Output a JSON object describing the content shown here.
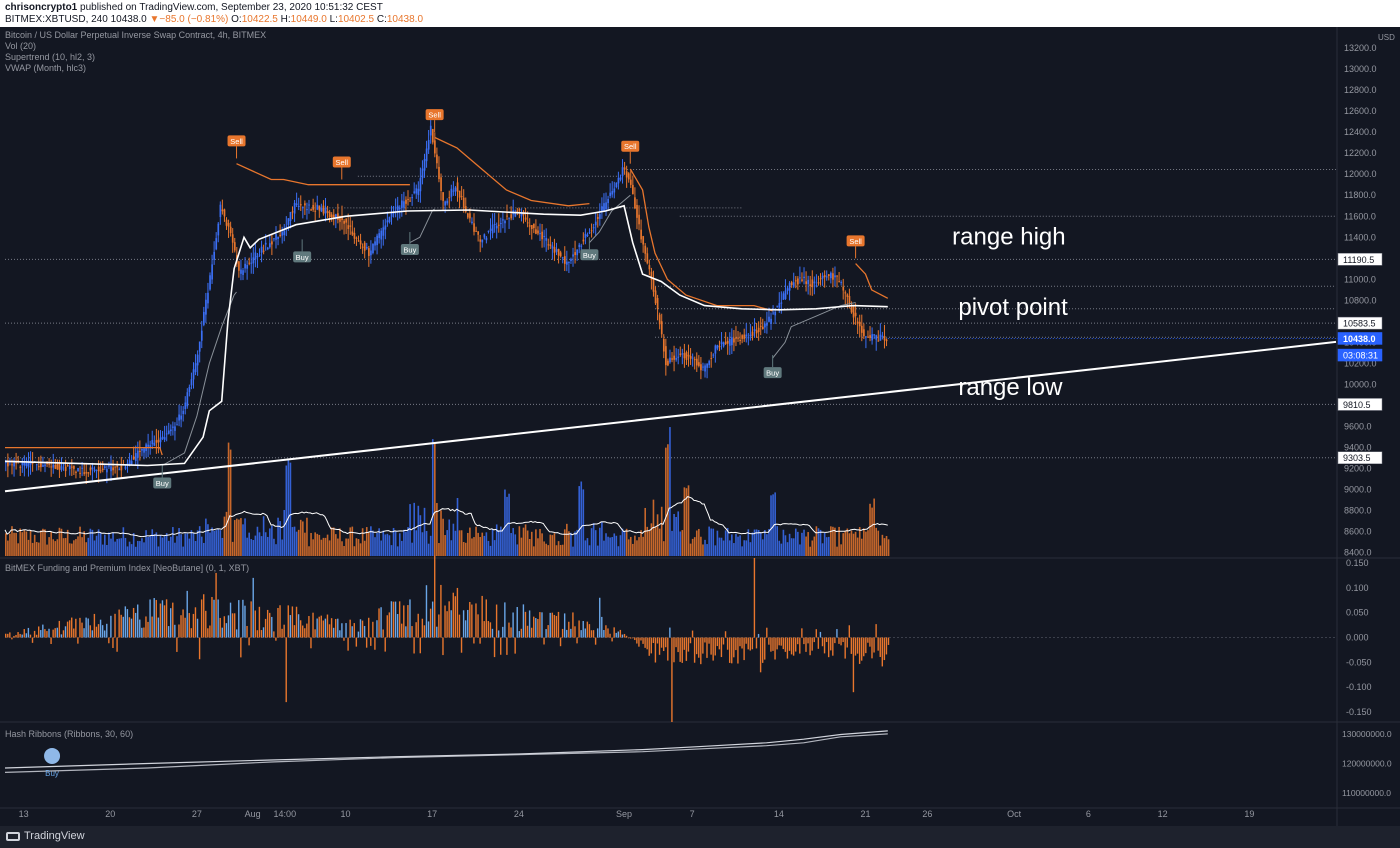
{
  "header": {
    "publisher": "chrisoncrypto1",
    "published_on": "published on TradingView.com, September 23, 2020 10:51:32 CEST",
    "symbol_line": "BITMEX:XBTUSD, 240",
    "last": "10438.0",
    "change": "▼−85.0 (−0.81%)",
    "ohlc": [
      {
        "k": "O:",
        "v": "10422.5"
      },
      {
        "k": "H:",
        "v": "10449.0"
      },
      {
        "k": "L:",
        "v": "10402.5"
      },
      {
        "k": "C:",
        "v": "10438.0"
      }
    ]
  },
  "legend": {
    "instrument": "Bitcoin / US Dollar Perpetual Inverse Swap Contract, 4h, BITMEX",
    "vol": "Vol (20)",
    "supertrend": "Supertrend (10, hl2, 3)",
    "vwap": "VWAP (Month, hlc3)",
    "funding": "BitMEX Funding and Premium Index [NeoButane] (0, 1, XBT)",
    "hash": "Hash Ribbons (Ribbons, 30, 60)"
  },
  "footer": {
    "brand": "TradingView"
  },
  "colors": {
    "background": "#131722",
    "candle_up": "#3b6ff5",
    "candle_down": "#e8762d",
    "supertrend_down": "#e8762d",
    "supertrend_up": "#8a9199",
    "vwap": "#ffffff",
    "trendline": "#ffffff",
    "dotted_level": "#787b86",
    "current_price_tag": "#2962ff"
  },
  "chart_data": [
    {
      "type": "candlestick",
      "title": "Bitcoin / US Dollar Perpetual Inverse Swap Contract, 4h, BITMEX",
      "currency": "USD",
      "ylim": [
        8350,
        13400
      ],
      "y_ticks": [
        8400,
        8600,
        8800,
        9000,
        9200,
        9400,
        9600,
        9800,
        10000,
        10200,
        10400,
        10600,
        10800,
        11000,
        11200,
        11400,
        11600,
        11800,
        12000,
        12200,
        12400,
        12600,
        12800,
        13000,
        13200,
        13400
      ],
      "x_ticks": [
        "13",
        "20",
        "27",
        "Aug",
        "14:00",
        "10",
        "17",
        "24",
        "Sep",
        "7",
        "14",
        "21",
        "26",
        "Oct",
        "6",
        "12",
        "19"
      ],
      "x_tick_days": [
        0,
        7,
        14,
        18.5,
        21.1,
        26,
        33,
        40,
        48.5,
        54,
        61,
        68,
        73,
        80,
        86,
        92,
        99
      ],
      "x_range_days": [
        -1.5,
        106
      ],
      "last_candle_day": 69.8,
      "price_path": [
        [
          -1.5,
          9250
        ],
        [
          2,
          9240
        ],
        [
          5,
          9180
        ],
        [
          8,
          9210
        ],
        [
          10,
          9400
        ],
        [
          12,
          9560
        ],
        [
          13,
          9750
        ],
        [
          14,
          10200
        ],
        [
          15,
          10900
        ],
        [
          16,
          11700
        ],
        [
          17,
          11350
        ],
        [
          17.5,
          11050
        ],
        [
          19,
          11250
        ],
        [
          21,
          11450
        ],
        [
          22,
          11700
        ],
        [
          24,
          11680
        ],
        [
          26,
          11550
        ],
        [
          27,
          11380
        ],
        [
          28,
          11250
        ],
        [
          30,
          11650
        ],
        [
          32,
          11850
        ],
        [
          33,
          12450
        ],
        [
          34,
          11700
        ],
        [
          35,
          11900
        ],
        [
          36,
          11600
        ],
        [
          37,
          11350
        ],
        [
          38,
          11500
        ],
        [
          40,
          11650
        ],
        [
          42,
          11400
        ],
        [
          44,
          11150
        ],
        [
          46,
          11500
        ],
        [
          47,
          11700
        ],
        [
          48,
          11900
        ],
        [
          48.5,
          12050
        ],
        [
          49,
          11950
        ],
        [
          50,
          11400
        ],
        [
          51,
          10900
        ],
        [
          52,
          10200
        ],
        [
          53,
          10300
        ],
        [
          54,
          10250
        ],
        [
          55,
          10150
        ],
        [
          56,
          10350
        ],
        [
          57,
          10400
        ],
        [
          58,
          10450
        ],
        [
          59,
          10500
        ],
        [
          60,
          10550
        ],
        [
          61,
          10750
        ],
        [
          62,
          10950
        ],
        [
          63,
          11000
        ],
        [
          64,
          10950
        ],
        [
          65,
          11050
        ],
        [
          66,
          11000
        ],
        [
          67,
          10700
        ],
        [
          68,
          10450
        ],
        [
          69.8,
          10438
        ]
      ],
      "supertrend": [
        {
          "trend": "down",
          "points": [
            [
              -1.5,
              9400
            ],
            [
              11,
              9400
            ],
            [
              11.2,
              9330
            ]
          ]
        },
        {
          "trend": "up",
          "points": [
            [
              11.2,
              9230
            ],
            [
              13,
              9350
            ],
            [
              14,
              9700
            ],
            [
              15,
              10200
            ],
            [
              16,
              10550
            ],
            [
              17,
              10850
            ],
            [
              17.2,
              10880
            ]
          ]
        },
        {
          "trend": "down",
          "points": [
            [
              17.2,
              12100
            ],
            [
              20,
              11950
            ],
            [
              21,
              11950
            ],
            [
              23,
              11900
            ],
            [
              27,
              11900
            ],
            [
              29,
              11900
            ],
            [
              31,
              11900
            ],
            [
              31.2,
              11900
            ]
          ]
        },
        {
          "trend": "up",
          "points": [
            [
              31.2,
              11350
            ],
            [
              32,
              11400
            ],
            [
              33,
              11650
            ],
            [
              33.2,
              11670
            ]
          ]
        },
        {
          "trend": "down",
          "points": [
            [
              33.2,
              12350
            ],
            [
              35,
              12250
            ],
            [
              37,
              12050
            ],
            [
              39,
              11850
            ],
            [
              41,
              11750
            ],
            [
              44,
              11700
            ],
            [
              45.7,
              11720
            ]
          ]
        },
        {
          "trend": "up",
          "points": [
            [
              45.7,
              11350
            ],
            [
              46.5,
              11450
            ],
            [
              47.5,
              11650
            ],
            [
              48.5,
              11750
            ],
            [
              49,
              11800
            ]
          ]
        },
        {
          "trend": "down",
          "points": [
            [
              49,
              12050
            ],
            [
              50,
              11850
            ],
            [
              50.5,
              11500
            ],
            [
              51,
              11250
            ],
            [
              52,
              11000
            ],
            [
              53.5,
              10850
            ],
            [
              56,
              10750
            ],
            [
              59,
              10750
            ],
            [
              60.5,
              10700
            ]
          ]
        },
        {
          "trend": "up",
          "points": [
            [
              60.5,
              10250
            ],
            [
              61.5,
              10400
            ],
            [
              62,
              10550
            ],
            [
              63,
              10600
            ],
            [
              64,
              10650
            ],
            [
              66,
              10750
            ],
            [
              67.2,
              10780
            ]
          ]
        },
        {
          "trend": "down",
          "points": [
            [
              67.2,
              11150
            ],
            [
              68,
              11050
            ],
            [
              68.5,
              10900
            ],
            [
              69.8,
              10820
            ]
          ]
        }
      ],
      "vwap": [
        [
          -1.5,
          9270
        ],
        [
          10,
          9230
        ],
        [
          13,
          9250
        ],
        [
          14.5,
          9500
        ],
        [
          15,
          9750
        ],
        [
          16,
          9840
        ],
        [
          16.5,
          10600
        ],
        [
          17,
          11100
        ],
        [
          17.8,
          11400
        ],
        [
          18.3,
          11300
        ],
        [
          19,
          11380
        ],
        [
          22,
          11520
        ],
        [
          26,
          11600
        ],
        [
          31,
          11650
        ],
        [
          36,
          11660
        ],
        [
          42,
          11620
        ],
        [
          45,
          11610
        ],
        [
          47,
          11650
        ],
        [
          48.5,
          11700
        ],
        [
          49.2,
          11350
        ],
        [
          50,
          11050
        ],
        [
          51.5,
          10980
        ],
        [
          53,
          10850
        ],
        [
          55,
          10750
        ],
        [
          58,
          10720
        ],
        [
          61,
          10710
        ],
        [
          64,
          10720
        ],
        [
          67,
          10750
        ],
        [
          69.8,
          10740
        ]
      ],
      "trendline": {
        "from": [
          -1.5,
          8985
        ],
        "to": [
          106,
          10405
        ]
      },
      "levels": [
        {
          "price": 12045,
          "day_from": 48.5,
          "day_to": 106
        },
        {
          "price": 11980,
          "day_from": 27,
          "day_to": 48
        },
        {
          "price": 11680,
          "day_from": 23,
          "day_to": 58
        },
        {
          "price": 11600,
          "day_from": 53,
          "day_to": 106
        },
        {
          "price": 11190.5,
          "day_from": -1.5,
          "day_to": 106
        },
        {
          "price": 10935,
          "day_from": 51,
          "day_to": 106
        },
        {
          "price": 10720,
          "day_from": 51,
          "day_to": 106
        },
        {
          "price": 10583.5,
          "day_from": -1.5,
          "day_to": 106
        },
        {
          "price": 10450,
          "day_from": 51,
          "day_to": 106
        },
        {
          "price": 9810.5,
          "day_from": -1.5,
          "day_to": 106
        },
        {
          "price": 9303.5,
          "day_from": -1.5,
          "day_to": 106
        }
      ],
      "price_tags": [
        {
          "text": "11190.5",
          "price": 11190.5,
          "kind": "level"
        },
        {
          "text": "10583.5",
          "price": 10583.5,
          "kind": "level"
        },
        {
          "text": "10438.0",
          "price": 10438.0,
          "kind": "current"
        },
        {
          "text": "03:08:31",
          "price": 10280,
          "kind": "countdown"
        },
        {
          "text": "9810.5",
          "price": 9810.5,
          "kind": "level"
        },
        {
          "text": "9303.5",
          "price": 9303.5,
          "kind": "level"
        }
      ],
      "signals": [
        {
          "label": "Sell",
          "kind": "sell",
          "day": 17.2,
          "price": 12150
        },
        {
          "label": "Buy",
          "kind": "buy",
          "day": 11.2,
          "price": 9230
        },
        {
          "label": "Buy",
          "kind": "buy",
          "day": 22.5,
          "price": 11380
        },
        {
          "label": "Sell",
          "kind": "sell",
          "day": 25.7,
          "price": 11950
        },
        {
          "label": "Buy",
          "kind": "buy",
          "day": 31.2,
          "price": 11450
        },
        {
          "label": "Sell",
          "kind": "sell",
          "day": 33.2,
          "price": 12400
        },
        {
          "label": "Buy",
          "kind": "buy",
          "day": 45.7,
          "price": 11400
        },
        {
          "label": "Sell",
          "kind": "sell",
          "day": 49,
          "price": 12100
        },
        {
          "label": "Buy",
          "kind": "buy",
          "day": 60.5,
          "price": 10280
        },
        {
          "label": "Sell",
          "kind": "sell",
          "day": 67.2,
          "price": 11200
        }
      ],
      "annotations": [
        {
          "text": "range high",
          "day": 75,
          "price": 11330
        },
        {
          "text": "pivot point",
          "day": 75.5,
          "price": 10660
        },
        {
          "text": "range low",
          "day": 75.5,
          "price": 9900
        }
      ],
      "volume_peaks": [
        {
          "day": 16.6,
          "height": 0.95
        },
        {
          "day": 21.3,
          "height": 0.85
        },
        {
          "day": 33.1,
          "height": 1.0
        },
        {
          "day": 39,
          "height": 0.55
        },
        {
          "day": 45,
          "height": 0.6
        },
        {
          "day": 52,
          "height": 1.0
        },
        {
          "day": 53.5,
          "height": 0.55
        },
        {
          "day": 60.5,
          "height": 0.5
        },
        {
          "day": 68.5,
          "height": 0.45
        }
      ]
    },
    {
      "type": "bar",
      "title": "BitMEX Funding and Premium Index [NeoButane] (0, 1, XBT)",
      "ylim": [
        -0.17,
        0.16
      ],
      "y_ticks": [
        0.15,
        0.1,
        0.05,
        0.0,
        -0.05,
        -0.1,
        -0.15
      ],
      "y_tick_labels": [
        "0.150",
        "0.100",
        "0.050",
        "0.000",
        "-0.050",
        "-0.100",
        "-0.150"
      ],
      "regime": [
        [
          -1.5,
          0.005
        ],
        [
          14,
          0.06
        ],
        [
          20,
          0.04
        ],
        [
          28,
          0.03
        ],
        [
          33,
          0.07
        ],
        [
          40,
          0.04
        ],
        [
          47,
          0.025
        ],
        [
          51,
          -0.03
        ],
        [
          58,
          -0.035
        ],
        [
          64,
          -0.02
        ],
        [
          69.8,
          -0.04
        ]
      ],
      "spikes": [
        {
          "day": 15.5,
          "value": 0.13
        },
        {
          "day": 18.5,
          "value": 0.12
        },
        {
          "day": 21.2,
          "value": -0.13
        },
        {
          "day": 33.1,
          "value": 0.165
        },
        {
          "day": 46.5,
          "value": 0.08
        },
        {
          "day": 52.3,
          "value": -0.17
        },
        {
          "day": 59,
          "value": 0.16
        },
        {
          "day": 59.5,
          "value": -0.07
        },
        {
          "day": 67,
          "value": -0.11
        }
      ]
    },
    {
      "type": "line",
      "title": "Hash Ribbons (Ribbons, 30, 60)",
      "ylim": [
        105000000,
        134000000
      ],
      "y_ticks": [
        110000000,
        120000000,
        130000000
      ],
      "y_tick_labels": [
        "110000000.0",
        "120000000.0",
        "130000000.0"
      ],
      "series": [
        {
          "name": "",
          "values": [
            [
              -1.5,
              117000000
            ],
            [
              10,
              118500000
            ],
            [
              20,
              120500000
            ],
            [
              30,
              122000000
            ],
            [
              40,
              123000000
            ],
            [
              50,
              124000000
            ],
            [
              55,
              125000000
            ],
            [
              60,
              126000000
            ],
            [
              63,
              127000000
            ],
            [
              66,
              129000000
            ],
            [
              69.8,
              130000000
            ]
          ]
        },
        {
          "name": "",
          "values": [
            [
              -1.5,
              118500000
            ],
            [
              10,
              120000000
            ],
            [
              20,
              121200000
            ],
            [
              30,
              122300000
            ],
            [
              40,
              123200000
            ],
            [
              50,
              124700000
            ],
            [
              55,
              125800000
            ],
            [
              60,
              127000000
            ],
            [
              63,
              128200000
            ],
            [
              66,
              129800000
            ],
            [
              69.8,
              131000000
            ]
          ]
        }
      ],
      "signals": [
        {
          "label": "Buy",
          "day": 2.3,
          "value": 118500000
        }
      ]
    }
  ]
}
